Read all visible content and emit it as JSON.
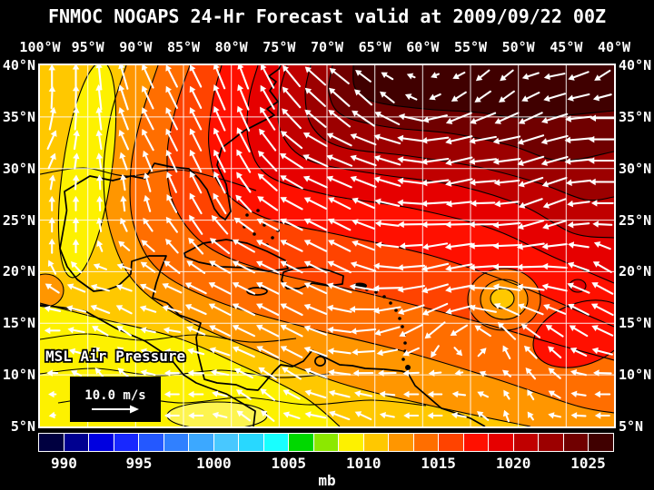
{
  "title": "FNMOC NOGAPS 24-Hr Forecast valid at 2009/09/22 00Z",
  "map_overlay": {
    "variable_label": "MSL Air Pressure",
    "vector_scale_label": "10.0 m/s"
  },
  "axes": {
    "top": [
      "100°W",
      "95°W",
      "90°W",
      "85°W",
      "80°W",
      "75°W",
      "70°W",
      "65°W",
      "60°W",
      "55°W",
      "50°W",
      "45°W",
      "40°W"
    ],
    "left": [
      "40°N",
      "35°N",
      "30°N",
      "25°N",
      "20°N",
      "15°N",
      "10°N",
      "5°N"
    ],
    "right": [
      "40°N",
      "35°N",
      "30°N",
      "25°N",
      "20°N",
      "15°N",
      "10°N",
      "5°N"
    ]
  },
  "colorbar": {
    "unit_label": "mb",
    "labels": [
      "990",
      "995",
      "1000",
      "1005",
      "1010",
      "1015",
      "1020",
      "1025"
    ],
    "label_boundaries": [
      1,
      4,
      7,
      10,
      13,
      16,
      19,
      22
    ],
    "cells": 23,
    "colors": [
      "#000040",
      "#000090",
      "#0000e0",
      "#1828ff",
      "#2458ff",
      "#3080ff",
      "#3ca8ff",
      "#48c8ff",
      "#28d8ff",
      "#18ffff",
      "#00d800",
      "#8ce800",
      "#fdf100",
      "#ffc800",
      "#ff9600",
      "#ff6e00",
      "#ff4300",
      "#ff1000",
      "#e60000",
      "#c00000",
      "#9c0000",
      "#700000",
      "#400000"
    ]
  },
  "chart_data": {
    "type": "heatmap",
    "title": "FNMOC NOGAPS 24-Hr Forecast valid at 2009/09/22 00Z",
    "model": "FNMOC NOGAPS",
    "forecast": "24-Hr",
    "valid_time": "2009/09/22 00Z",
    "variable": "MSL Air Pressure",
    "unit": "mb",
    "xlabel_ticks_deg_west": [
      100,
      95,
      90,
      85,
      80,
      75,
      70,
      65,
      60,
      55,
      50,
      45,
      40
    ],
    "ylabel_ticks_deg_north": [
      40,
      35,
      30,
      25,
      20,
      15,
      10,
      5
    ],
    "colorbar_labels_mb": [
      990,
      995,
      1000,
      1005,
      1010,
      1015,
      1020,
      1025
    ],
    "contour_interval_mb": 1.67,
    "vector_legend_mps": 10.0,
    "pressure_grid_mb": {
      "lats_deg_n": [
        40,
        35,
        30,
        25,
        20,
        15,
        10,
        5
      ],
      "lons_deg_w": [
        100,
        95,
        90,
        85,
        80,
        75,
        70,
        65,
        60,
        55,
        50,
        45,
        40
      ],
      "values": [
        [
          1010,
          1012,
          1015,
          1017,
          1019,
          1023,
          1025,
          1026,
          1026,
          1026,
          1025,
          1025,
          1024
        ],
        [
          1010,
          1012,
          1014,
          1016,
          1018,
          1021,
          1023,
          1025,
          1026,
          1025,
          1024,
          1023,
          1023
        ],
        [
          1011,
          1012,
          1013,
          1015,
          1017,
          1019,
          1020,
          1021,
          1022,
          1021,
          1021,
          1020,
          1020
        ],
        [
          1011,
          1012,
          1013,
          1014,
          1016,
          1017,
          1018,
          1019,
          1019,
          1019,
          1019,
          1018,
          1018
        ],
        [
          1011,
          1012,
          1012,
          1013,
          1014,
          1015,
          1016,
          1017,
          1017,
          1016,
          1016,
          1016,
          1017
        ],
        [
          1010,
          1010,
          1011,
          1011,
          1012,
          1013,
          1014,
          1014,
          1013,
          1011,
          1013,
          1014,
          1015
        ],
        [
          1009,
          1009,
          1010,
          1010,
          1010,
          1011,
          1012,
          1012,
          1012,
          1012,
          1012,
          1013,
          1013
        ],
        [
          1009,
          1009,
          1009,
          1009,
          1009,
          1010,
          1010,
          1011,
          1011,
          1011,
          1012,
          1012,
          1012
        ]
      ],
      "note": "approximate values read from the filled-contour colors"
    }
  }
}
